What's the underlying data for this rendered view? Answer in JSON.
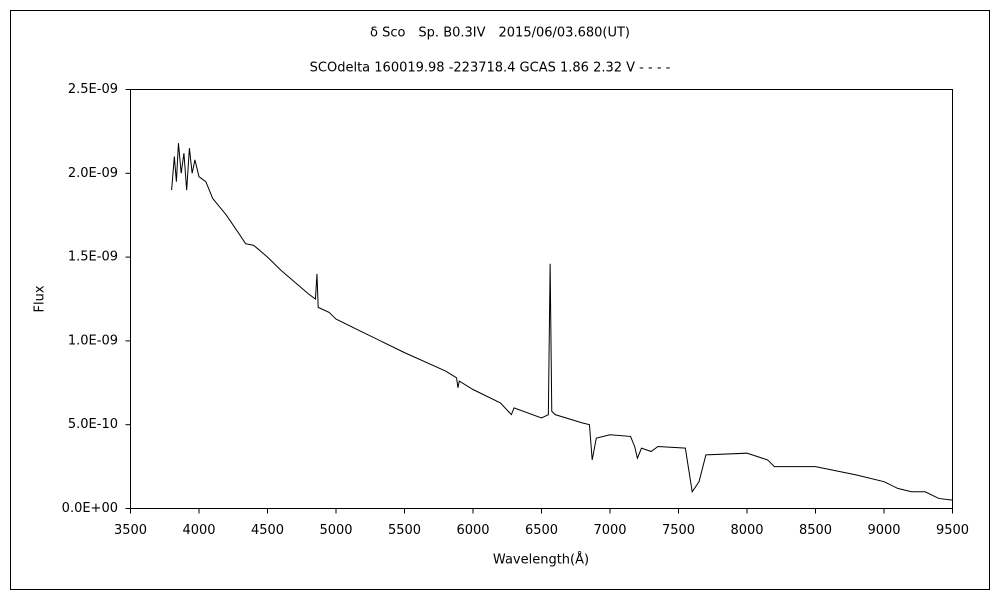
{
  "chart_data": {
    "type": "line",
    "title": "δ Sco　Sp. B0.3IV　2015/06/03.680(UT)",
    "subtitle": "SCOdelta 160019.98 -223718.4 GCAS 1.86 2.32 V - - - -",
    "x_label": "Wavelength(Å)",
    "y_label": "Flux",
    "x": [
      3800,
      3820,
      3835,
      3850,
      3870,
      3890,
      3910,
      3930,
      3950,
      3970,
      4000,
      4050,
      4100,
      4150,
      4200,
      4300,
      4340,
      4400,
      4500,
      4600,
      4700,
      4800,
      4850,
      4861,
      4870,
      4950,
      5000,
      5200,
      5500,
      5800,
      5880,
      5890,
      5900,
      6000,
      6200,
      6280,
      6300,
      6500,
      6550,
      6563,
      6575,
      6600,
      6800,
      6850,
      6870,
      6900,
      7000,
      7150,
      7180,
      7200,
      7230,
      7300,
      7350,
      7550,
      7600,
      7650,
      7700,
      8000,
      8150,
      8200,
      8500,
      8800,
      9000,
      9100,
      9200,
      9300,
      9400,
      9500
    ],
    "series": [
      {
        "name": "Flux",
        "color": "#000000",
        "values": [
          1.9e-09,
          2.1e-09,
          1.95e-09,
          2.18e-09,
          2e-09,
          2.12e-09,
          1.9e-09,
          2.15e-09,
          2e-09,
          2.08e-09,
          1.98e-09,
          1.95e-09,
          1.85e-09,
          1.8e-09,
          1.75e-09,
          1.63e-09,
          1.58e-09,
          1.57e-09,
          1.5e-09,
          1.42e-09,
          1.35e-09,
          1.28e-09,
          1.25e-09,
          1.4e-09,
          1.2e-09,
          1.17e-09,
          1.13e-09,
          1.05e-09,
          9.3e-10,
          8.2e-10,
          7.8e-10,
          7.2e-10,
          7.6e-10,
          7.1e-10,
          6.3e-10,
          5.6e-10,
          6e-10,
          5.4e-10,
          5.6e-10,
          1.46e-09,
          5.8e-10,
          5.6e-10,
          5.1e-10,
          5e-10,
          2.9e-10,
          4.2e-10,
          4.4e-10,
          4.3e-10,
          3.7e-10,
          3e-10,
          3.6e-10,
          3.4e-10,
          3.7e-10,
          3.6e-10,
          1e-10,
          1.6e-10,
          3.2e-10,
          3.3e-10,
          2.9e-10,
          2.5e-10,
          2.5e-10,
          2e-10,
          1.6e-10,
          1.2e-10,
          1e-10,
          1e-10,
          6e-11,
          5e-11
        ]
      }
    ],
    "xlim": [
      3500,
      9500
    ],
    "xticks": [
      3500,
      4000,
      4500,
      5000,
      5500,
      6000,
      6500,
      7000,
      7500,
      8000,
      8500,
      9000,
      9500
    ],
    "ylim": [
      0,
      2.5e-09
    ],
    "yticks": [
      {
        "value": 0,
        "label": "0.0E+00"
      },
      {
        "value": 5e-10,
        "label": "5.0E-10"
      },
      {
        "value": 1e-09,
        "label": "1.0E-09"
      },
      {
        "value": 1.5e-09,
        "label": "1.5E-09"
      },
      {
        "value": 2e-09,
        "label": "2.0E-09"
      },
      {
        "value": 2.5e-09,
        "label": "2.5E-09"
      }
    ],
    "grid": false
  }
}
